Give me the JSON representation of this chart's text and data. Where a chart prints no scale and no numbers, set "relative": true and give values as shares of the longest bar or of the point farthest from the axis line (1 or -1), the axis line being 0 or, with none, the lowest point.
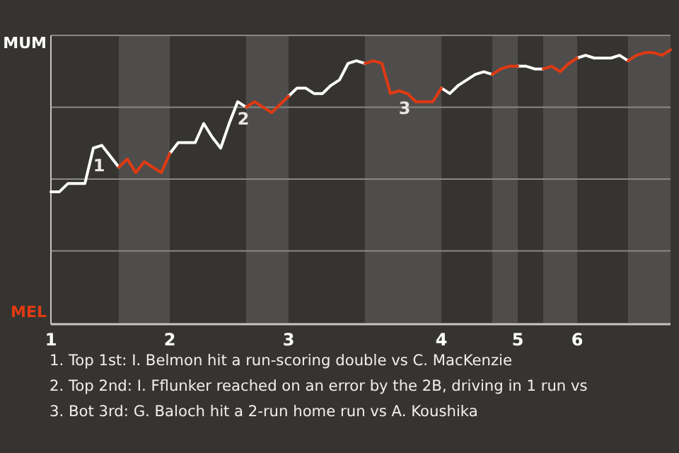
{
  "chart_data": {
    "type": "line",
    "relative": true,
    "categories": [
      "1",
      null,
      null,
      null,
      null,
      null,
      null,
      null,
      null,
      null,
      null,
      null,
      null,
      null,
      "2",
      null,
      null,
      null,
      null,
      null,
      null,
      null,
      null,
      null,
      null,
      null,
      null,
      null,
      "3",
      null,
      null,
      null,
      null,
      null,
      null,
      null,
      null,
      null,
      null,
      null,
      null,
      null,
      null,
      null,
      null,
      null,
      "4",
      null,
      null,
      null,
      null,
      null,
      null,
      null,
      null,
      "5",
      null,
      null,
      null,
      null,
      null,
      null,
      "6",
      null,
      null,
      null,
      null,
      null,
      null,
      null,
      null,
      null,
      null,
      null
    ],
    "grid": "y",
    "legend": "left",
    "marker": "none",
    "line_style": "solid",
    "series": [
      {
        "name": "MUM",
        "color": "#ffffff",
        "values": [
          0.48,
          0.48,
          0.51,
          0.51,
          0.51,
          0.64,
          0.65,
          0.61,
          0.57,
          null,
          null,
          null,
          null,
          null,
          0.62,
          0.66,
          0.66,
          0.66,
          0.73,
          0.68,
          0.64,
          0.73,
          0.81,
          0.79,
          null,
          null,
          null,
          null,
          0.83,
          0.86,
          0.86,
          0.84,
          0.84,
          0.87,
          0.89,
          0.95,
          0.96,
          0.95,
          null,
          null,
          null,
          null,
          null,
          null,
          null,
          null,
          0.86,
          0.84,
          0.87,
          0.89,
          0.91,
          0.92,
          0.91,
          null,
          null,
          0.94,
          0.94,
          0.93,
          0.93,
          null,
          null,
          null,
          0.97,
          0.98,
          0.97,
          0.97,
          0.97,
          0.98,
          0.96,
          null,
          null,
          null,
          null,
          null
        ]
      },
      {
        "name": "MEL",
        "color": "#e03a12",
        "values": [
          null,
          null,
          null,
          null,
          null,
          null,
          null,
          null,
          0.57,
          0.6,
          0.55,
          0.59,
          0.57,
          0.55,
          0.62,
          null,
          null,
          null,
          null,
          null,
          null,
          null,
          null,
          0.79,
          0.81,
          0.79,
          0.77,
          0.8,
          0.83,
          null,
          null,
          null,
          null,
          null,
          null,
          null,
          null,
          0.95,
          0.96,
          0.95,
          0.84,
          0.85,
          0.84,
          0.81,
          0.81,
          0.81,
          0.86,
          null,
          null,
          null,
          null,
          null,
          0.91,
          0.93,
          0.94,
          0.94,
          null,
          null,
          0.93,
          0.94,
          0.92,
          0.95,
          0.97,
          null,
          null,
          null,
          null,
          null,
          0.96,
          0.98,
          0.99,
          0.99,
          0.98,
          1
        ]
      }
    ],
    "annotations": [
      {
        "text": "1",
        "y": 0.64
      },
      {
        "text": "2",
        "y": 0.81
      },
      {
        "text": "3",
        "y": 0.85
      },
      "1. Top 1st: I. Belmon hit a run-scoring double vs C. MacKenzie",
      "2. Top 2nd: I. Fflunker reached on an error by the 2B, driving in 1 run vs",
      "3. Bot 3rd: G. Baloch hit a 2-run home run vs A. Koushika"
    ]
  }
}
